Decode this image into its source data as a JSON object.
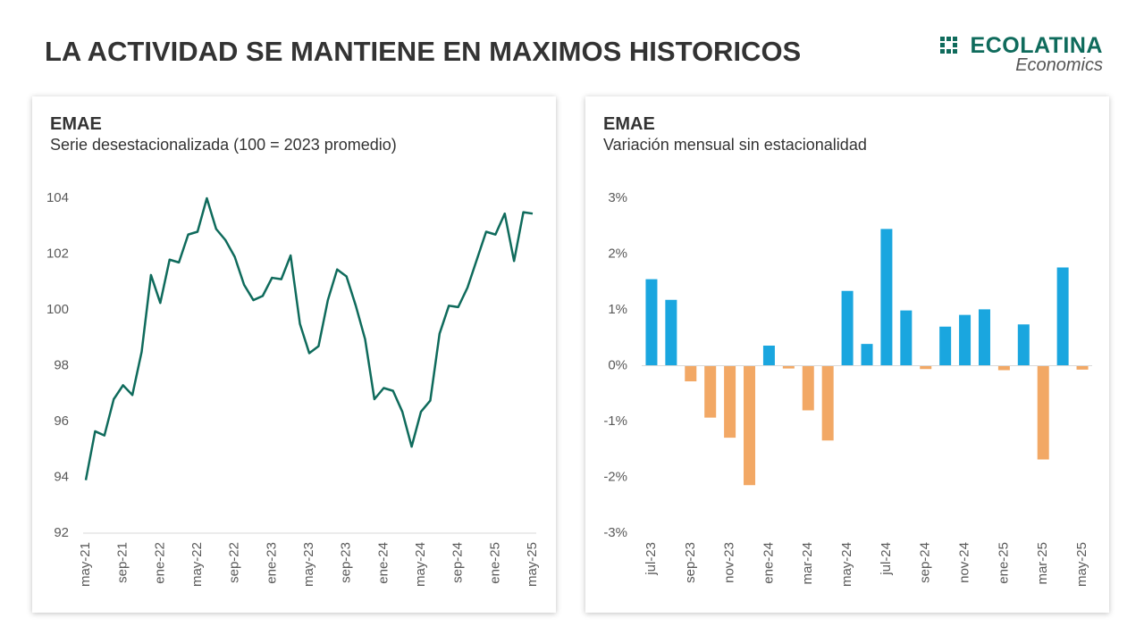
{
  "header": {
    "title": "LA ACTIVIDAD SE MANTIENE EN MAXIMOS HISTORICOS",
    "logo": {
      "brand": "ECOLATINA",
      "sub": "Economics"
    }
  },
  "chart_data": [
    {
      "type": "line",
      "title": "EMAE",
      "subtitle": "Serie desestacionalizada (100 = 2023 promedio)",
      "categories": [
        "may-21",
        null,
        null,
        null,
        "sep-21",
        null,
        null,
        null,
        "ene-22",
        null,
        null,
        null,
        "may-22",
        null,
        null,
        null,
        "sep-22",
        null,
        null,
        null,
        "ene-23",
        null,
        null,
        null,
        "may-23",
        null,
        null,
        null,
        "sep-23",
        null,
        null,
        null,
        "ene-24",
        null,
        null,
        null,
        "may-24",
        null,
        null,
        null,
        "sep-24",
        null,
        null,
        null,
        "ene-25",
        null,
        null,
        null,
        "may-25"
      ],
      "series": [
        {
          "name": "EMAE",
          "color": "#0f6b5c",
          "values": [
            93.9,
            95.65,
            95.5,
            96.8,
            97.3,
            96.95,
            98.5,
            101.25,
            100.25,
            101.8,
            101.7,
            102.7,
            102.8,
            104.0,
            102.9,
            102.5,
            101.9,
            100.9,
            100.35,
            100.5,
            101.15,
            101.1,
            101.95,
            99.5,
            98.45,
            98.7,
            100.35,
            101.45,
            101.2,
            100.15,
            98.95,
            96.8,
            97.2,
            97.1,
            96.35,
            95.1,
            96.35,
            96.75,
            99.15,
            100.15,
            100.1,
            100.8,
            101.8,
            102.8,
            102.7,
            103.45,
            101.75,
            103.5,
            103.45
          ]
        }
      ],
      "ylim": [
        92,
        104
      ],
      "yticks": [
        92,
        94,
        96,
        98,
        100,
        102,
        104
      ],
      "grid": false
    },
    {
      "type": "bar",
      "title": "EMAE",
      "subtitle": "Variación mensual sin estacionalidad",
      "categories": [
        "jul-23",
        null,
        "sep-23",
        null,
        "nov-23",
        null,
        "ene-24",
        null,
        "mar-24",
        null,
        "may-24",
        null,
        "jul-24",
        null,
        "sep-24",
        null,
        "nov-24",
        null,
        "ene-25",
        null,
        "mar-25",
        null,
        "may-25"
      ],
      "values": [
        1.55,
        1.18,
        -0.28,
        -0.93,
        -1.29,
        -2.14,
        0.36,
        -0.05,
        -0.8,
        -1.34,
        1.34,
        0.39,
        2.45,
        0.99,
        -0.06,
        0.7,
        0.91,
        1.01,
        -0.08,
        0.74,
        -1.68,
        1.76,
        -0.07
      ],
      "positive_color": "#1aa6df",
      "negative_color": "#f2a865",
      "ylim": [
        -3,
        3
      ],
      "yticks": [
        {
          "value": -3,
          "label": "-3%"
        },
        {
          "value": -2,
          "label": "-2%"
        },
        {
          "value": -1,
          "label": "-1%"
        },
        {
          "value": 0,
          "label": "0%"
        },
        {
          "value": 1,
          "label": "1%"
        },
        {
          "value": 2,
          "label": "2%"
        },
        {
          "value": 3,
          "label": "3%"
        }
      ],
      "grid": false
    }
  ]
}
